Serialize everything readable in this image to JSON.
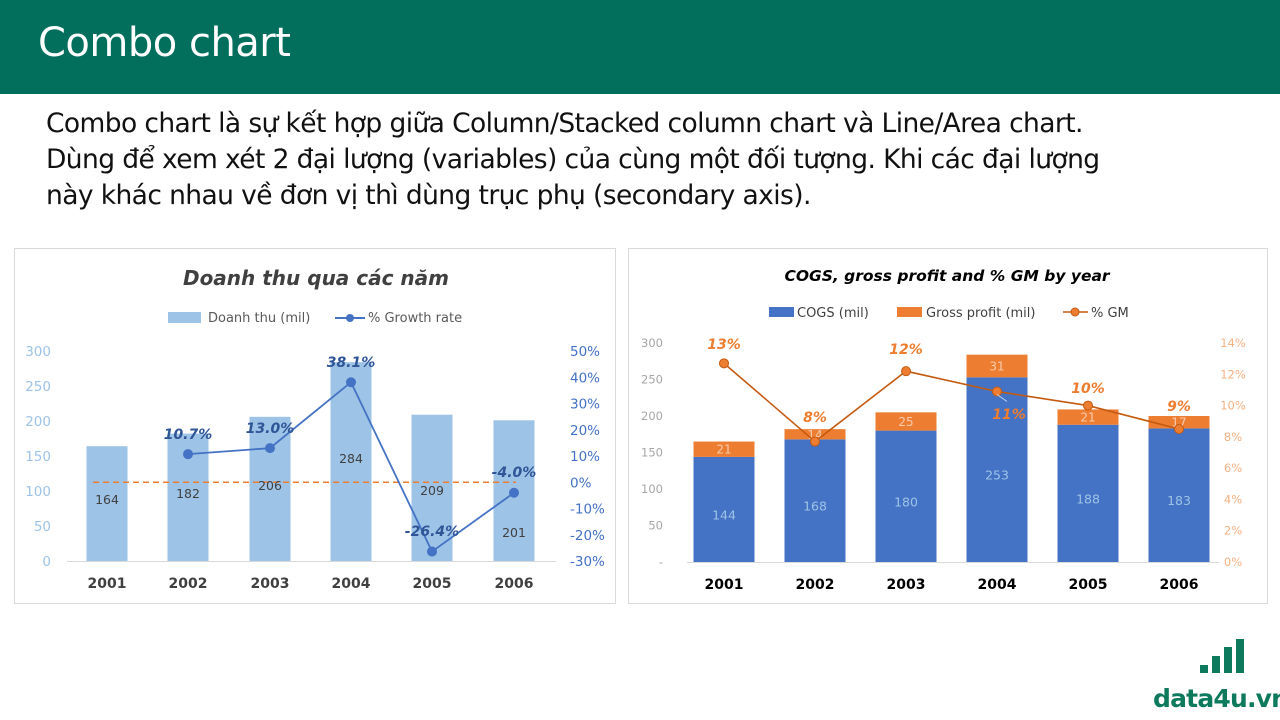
{
  "slide": {
    "title": "Combo chart",
    "description_lines": [
      "Combo chart là sự kết hợp giữa Column/Stacked column chart và Line/Area chart.",
      "Dùng để xem xét 2 đại lượng (variables) của cùng một đối tượng. Khi các đại lượng",
      "này khác nhau về đơn vị thì dùng trục phụ (secondary axis)."
    ],
    "logo_text": "data4u.vn",
    "colors": {
      "header_bg": "#016f5c",
      "revenue_bar": "#9dc3e6",
      "growth_line": "#4472c4",
      "zero_line": "#ed7d31",
      "cogs_bar": "#4472c4",
      "gross_profit_bar": "#ed7d31",
      "gm_line": "#c55a11",
      "logo": "#0e7a5d"
    }
  },
  "chart_data": [
    {
      "type": "bar+line",
      "title": "Doanh thu qua các năm",
      "categories": [
        "2001",
        "2002",
        "2003",
        "2004",
        "2005",
        "2006"
      ],
      "series": [
        {
          "name": "Doanh thu (mil)",
          "type": "bar",
          "axis": "primary",
          "values": [
            164,
            182,
            206,
            284,
            209,
            201
          ],
          "labels": [
            "164",
            "182",
            "206",
            "284",
            "209",
            "201"
          ]
        },
        {
          "name": "% Growth rate",
          "type": "line",
          "axis": "secondary",
          "values": [
            null,
            10.7,
            13.0,
            38.1,
            -26.4,
            -4.0
          ],
          "labels": [
            "",
            "10.7%",
            "13.0%",
            "38.1%",
            "-26.4%",
            "-4.0%"
          ]
        }
      ],
      "primary_axis": {
        "min": 0,
        "max": 300,
        "ticks": [
          "0",
          "50",
          "100",
          "150",
          "200",
          "250",
          "300"
        ]
      },
      "secondary_axis": {
        "min": -30,
        "max": 50,
        "ticks": [
          "-30%",
          "-20%",
          "-10%",
          "0%",
          "10%",
          "20%",
          "30%",
          "40%",
          "50%"
        ]
      },
      "annotations": [
        "dashed reference line at 0%"
      ],
      "legend_position": "top",
      "grid": false
    },
    {
      "type": "stacked_bar+line",
      "title": "COGS, gross profit and % GM by year",
      "categories": [
        "2001",
        "2002",
        "2003",
        "2004",
        "2005",
        "2006"
      ],
      "series": [
        {
          "name": "COGS (mil)",
          "type": "stacked_bar",
          "axis": "primary",
          "values": [
            144,
            168,
            180,
            253,
            188,
            183
          ]
        },
        {
          "name": "Gross profit (mil)",
          "type": "stacked_bar",
          "axis": "primary",
          "values": [
            21,
            14,
            25,
            31,
            21,
            17
          ]
        },
        {
          "name": "% GM",
          "type": "line",
          "axis": "secondary",
          "values": [
            12.7,
            7.7,
            12.2,
            10.9,
            10.0,
            8.5
          ],
          "labels": [
            "13%",
            "8%",
            "12%",
            "11%",
            "10%",
            "9%"
          ]
        }
      ],
      "primary_axis": {
        "min": 0,
        "max": 300,
        "ticks": [
          "-",
          "50",
          "100",
          "150",
          "200",
          "250",
          "300"
        ]
      },
      "secondary_axis": {
        "min": 0,
        "max": 14,
        "ticks": [
          "0%",
          "2%",
          "4%",
          "6%",
          "8%",
          "10%",
          "12%",
          "14%"
        ]
      },
      "legend_position": "top",
      "grid": false
    }
  ]
}
